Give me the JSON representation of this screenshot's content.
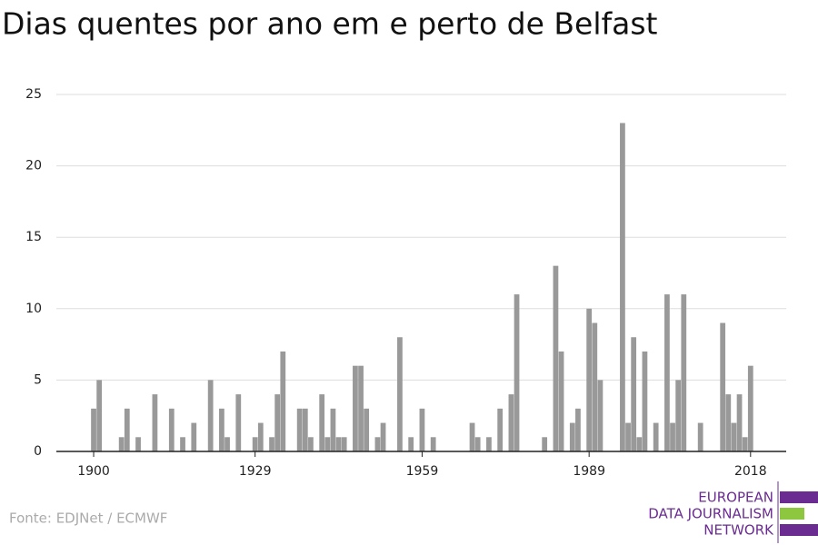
{
  "chart_data": {
    "type": "bar",
    "title": "Dias quentes por ano em e perto de Belfast",
    "x": [
      1900,
      1901,
      1905,
      1906,
      1908,
      1911,
      1914,
      1916,
      1918,
      1921,
      1923,
      1924,
      1926,
      1929,
      1930,
      1932,
      1933,
      1934,
      1937,
      1938,
      1939,
      1941,
      1942,
      1943,
      1944,
      1945,
      1947,
      1948,
      1949,
      1951,
      1952,
      1955,
      1957,
      1959,
      1961,
      1968,
      1969,
      1971,
      1973,
      1975,
      1976,
      1981,
      1983,
      1984,
      1986,
      1987,
      1989,
      1990,
      1991,
      1995,
      1996,
      1997,
      1998,
      1999,
      2001,
      2003,
      2004,
      2005,
      2006,
      2009,
      2013,
      2014,
      2015,
      2016,
      2017,
      2018
    ],
    "values": [
      3,
      5,
      1,
      3,
      1,
      4,
      3,
      1,
      2,
      5,
      3,
      1,
      4,
      1,
      2,
      1,
      4,
      7,
      3,
      3,
      1,
      4,
      1,
      3,
      1,
      1,
      6,
      6,
      3,
      1,
      2,
      8,
      1,
      3,
      1,
      2,
      1,
      1,
      3,
      4,
      11,
      1,
      13,
      7,
      2,
      3,
      10,
      9,
      5,
      23,
      2,
      8,
      1,
      7,
      2,
      11,
      2,
      5,
      11,
      2,
      9,
      4,
      2,
      4,
      1,
      6
    ],
    "color": "#999999",
    "xlim": [
      1893.3,
      2024.4
    ],
    "xticks": [
      1900,
      1929,
      1959,
      1989,
      2018
    ],
    "ylim": [
      0,
      25
    ],
    "yticks": [
      0,
      5,
      10,
      15,
      20,
      25
    ],
    "grid": true,
    "source": "Fonte: EDJNet / ECMWF",
    "logo": [
      "EUROPEAN",
      "DATA JOURNALISM",
      "NETWORK"
    ]
  }
}
